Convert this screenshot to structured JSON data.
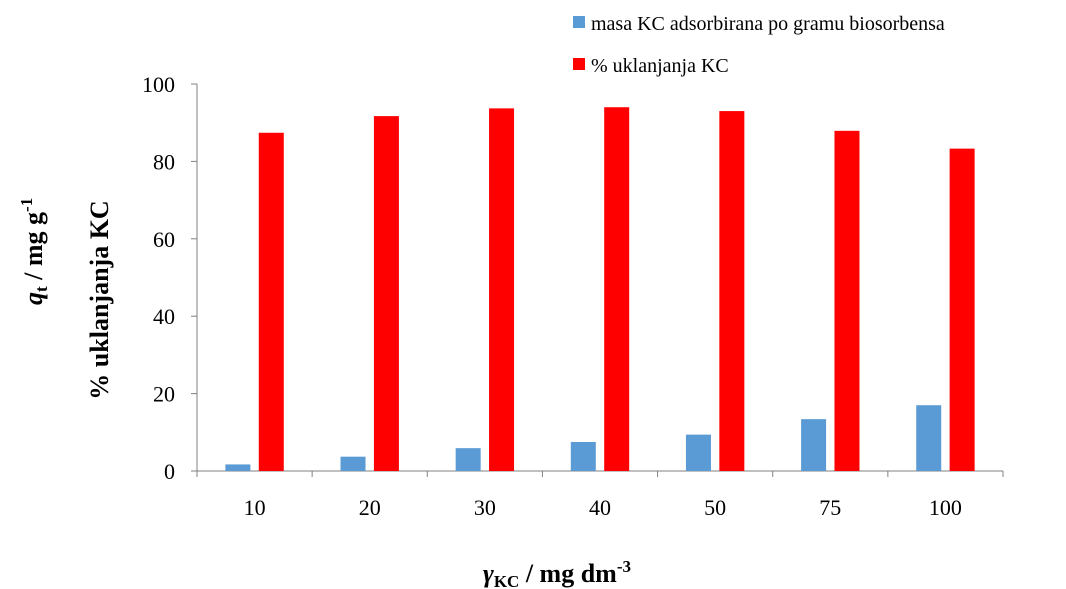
{
  "chart_data": {
    "type": "bar",
    "categories": [
      "10",
      "20",
      "30",
      "40",
      "50",
      "75",
      "100"
    ],
    "series": [
      {
        "name": "masa KC adsorbirana po gramu biosorbensa",
        "color": "#5B9BD5",
        "values": [
          1.7,
          3.7,
          5.9,
          7.5,
          9.4,
          13.4,
          17.0
        ]
      },
      {
        "name": "% uklanjanja KC",
        "color": "#FF0000",
        "values": [
          87.4,
          91.7,
          93.7,
          94.0,
          93.0,
          87.9,
          83.3
        ]
      }
    ],
    "ylim": [
      0,
      100
    ],
    "yticks": [
      "0",
      "20",
      "40",
      "60",
      "80",
      "100"
    ],
    "ylabel_1": {
      "main": "q",
      "sub": "t",
      "rest": " / mg g",
      "sup": "-1"
    },
    "ylabel_2": "% uklanjanja  KC",
    "xlabel": {
      "main": "γ",
      "sub": "KC",
      "rest": " / mg dm",
      "sup": "-3"
    },
    "legend_position": "top-right",
    "grid": false
  }
}
